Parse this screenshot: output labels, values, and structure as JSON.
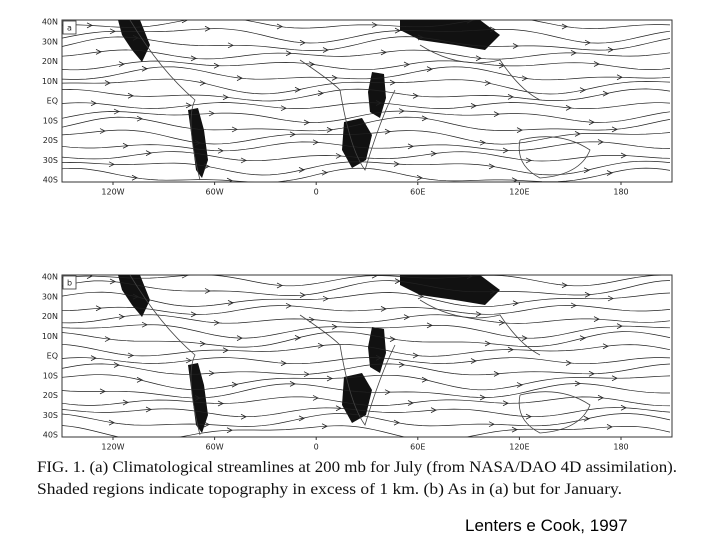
{
  "panels": [
    {
      "label": "a",
      "lat_labels": [
        "40N",
        "30N",
        "20N",
        "10N",
        "EQ",
        "10S",
        "20S",
        "30S",
        "40S"
      ],
      "lon_labels": [
        "120W",
        "60W",
        "0",
        "60E",
        "120E",
        "180"
      ]
    },
    {
      "label": "b",
      "lat_labels": [
        "40N",
        "30N",
        "20N",
        "10N",
        "EQ",
        "10S",
        "20S",
        "30S",
        "40S"
      ],
      "lon_labels": [
        "120W",
        "60W",
        "0",
        "60E",
        "120E",
        "180"
      ]
    }
  ],
  "caption": [
    "FIG. 1. (a) Climatological streamlines at 200 mb for July (from NASA/DAO 4D assimilation).",
    "Shaded regions indicate topography in excess of 1 km. (b) As in (a) but for January."
  ],
  "citation": "Lenters e Cook, 1997"
}
